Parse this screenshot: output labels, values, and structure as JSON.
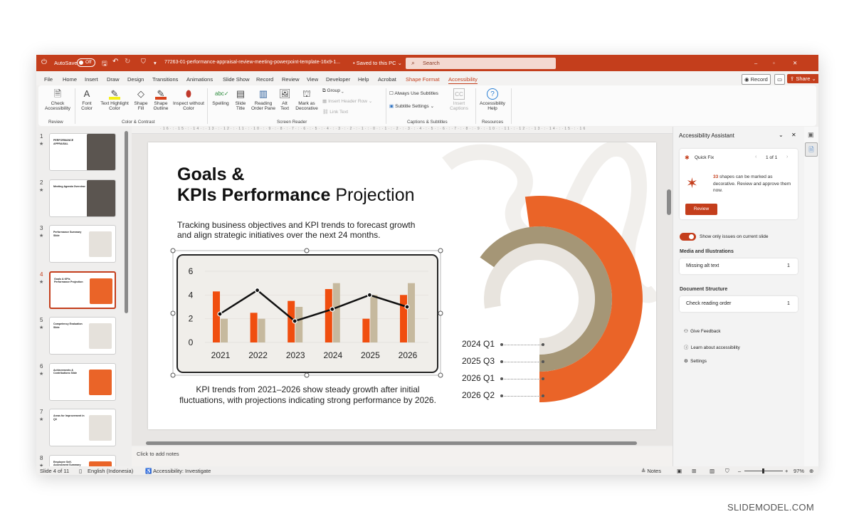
{
  "titlebar": {
    "autosave_label": "AutoSave",
    "autosave_state": "Off",
    "filename": "77263-01-performance-appraisal-review-meeting-powerpoint-template-16x9-1...",
    "save_status": "• Saved to this PC ⌄",
    "search_placeholder": "Search",
    "accent": "#c43e1c"
  },
  "menu": {
    "items": [
      "File",
      "Home",
      "Insert",
      "Draw",
      "Design",
      "Transitions",
      "Animations",
      "Slide Show",
      "Record",
      "Review",
      "View",
      "Developer",
      "Help",
      "Acrobat",
      "Shape Format",
      "Accessibility"
    ],
    "active": "Accessibility",
    "record_label": "Record",
    "share_label": "Share"
  },
  "ribbon": {
    "check_accessibility": "Check Accessibility",
    "font_color": "Font Color",
    "text_highlight": "Text Highlight Color",
    "shape_fill": "Shape Fill",
    "shape_outline": "Shape Outline",
    "inspect": "Inspect without Color",
    "spelling": "Spelling",
    "slide_title": "Slide Title",
    "reading_order": "Reading Order Pane",
    "alt_text": "Alt Text",
    "mark_decorative": "Mark as Decorative",
    "group": "Group",
    "insert_header_row": "Insert Header Row",
    "link_text": "Link Text",
    "always_subtitles": "Always Use Subtitles",
    "subtitle_settings": "Subtitle Settings",
    "insert_captions": "Insert Captions",
    "accessibility_help": "Accessibility Help",
    "groups": [
      "Review",
      "Color & Contrast",
      "Screen Reader",
      "Captions & Subtitles",
      "Resources"
    ]
  },
  "thumbnails": [
    {
      "num": "1",
      "title": "PERFORMANCE APPRAISAL"
    },
    {
      "num": "2",
      "title": "Meeting Agenda Overview"
    },
    {
      "num": "3",
      "title": "Performance Summary Slide"
    },
    {
      "num": "4",
      "title": "Goals & KPIs Performance Projection",
      "selected": true
    },
    {
      "num": "5",
      "title": "Competency Evaluation Slide"
    },
    {
      "num": "6",
      "title": "Achievements & Contributions Slide"
    },
    {
      "num": "7",
      "title": "Areas for Improvement in Q3"
    },
    {
      "num": "8",
      "title": "Employee Self-Assessment Summary"
    }
  ],
  "slide": {
    "title_line1": "Goals &",
    "title_line2_bold": "KPIs Performance",
    "title_line2_light": "Projection",
    "subtitle": "Tracking business objectives and KPI trends to forecast growth and align strategic initiatives over the next 24 months.",
    "caption": "KPI trends from 2021–2026 show steady growth after initial fluctuations, with projections indicating strong performance by 2026.",
    "donut_labels": [
      "2024 Q1",
      "2025 Q3",
      "2026 Q1",
      "2026 Q2"
    ],
    "donut_colors": [
      "#e8e4de",
      "#a59676",
      "#ea6428"
    ]
  },
  "chart_data": {
    "type": "bar",
    "categories": [
      "2021",
      "2022",
      "2023",
      "2024",
      "2025",
      "2026"
    ],
    "series": [
      {
        "kind": "bar",
        "color": "#f04e0f",
        "values": [
          4.3,
          2.5,
          3.5,
          4.5,
          2,
          4
        ]
      },
      {
        "kind": "bar",
        "color": "#c6b99e",
        "values": [
          2,
          2,
          3,
          5,
          4,
          5
        ]
      },
      {
        "kind": "line",
        "color": "#111111",
        "values": [
          2.4,
          4.4,
          1.8,
          2.8,
          4,
          3
        ]
      }
    ],
    "ylim": [
      0,
      6
    ],
    "yticks": [
      "0",
      "2",
      "4",
      "6"
    ],
    "grid": true
  },
  "notes_placeholder": "Click to add notes",
  "pane": {
    "title": "Accessibility Assistant",
    "quick_fix": "Quick Fix",
    "pager": "1 of 1",
    "count": "33",
    "message": "shapes can be marked as decorative. Review and approve them now.",
    "review_button": "Review",
    "toggle_label": "Show only issues on current slide",
    "toggle_on": true,
    "sections": [
      {
        "heading": "Media and Illustrations",
        "item": "Missing alt text",
        "count": "1"
      },
      {
        "heading": "Document Structure",
        "item": "Check reading order",
        "count": "1"
      }
    ],
    "links": [
      "Give Feedback",
      "Learn about accessibility",
      "Settings"
    ]
  },
  "status": {
    "slide_count": "Slide 4 of 11",
    "language": "English (Indonesia)",
    "accessibility": "Accessibility: Investigate",
    "notes": "Notes",
    "zoom": "97%"
  },
  "watermark": "SLIDEMODEL.COM"
}
